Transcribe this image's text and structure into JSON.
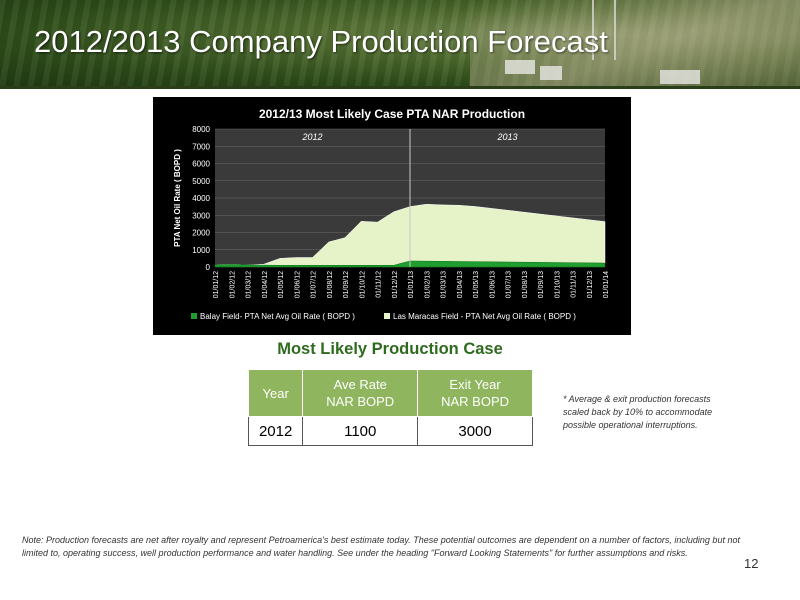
{
  "slide": {
    "title": "2012/2013 Company Production Forecast",
    "page_number": "12",
    "note": "Note: Production forecasts are net after royalty and represent Petroamerica's best estimate today. These potential outcomes are dependent on a number of factors, including but not limited to, operating success, well production performance and water handling. See under the heading \"Forward Looking Statements\" for further assumptions and risks.",
    "footnote": "* Average & exit production forecasts scaled back by 10% to accommodate possible operational interruptions."
  },
  "production_table": {
    "title": "Most Likely Production Case",
    "headers": [
      "Year",
      "Ave Rate\nNAR BOPD",
      "Exit Year\nNAR BOPD"
    ],
    "rows": [
      [
        "2012",
        "1100",
        "3000"
      ]
    ]
  },
  "chart_data": {
    "type": "area",
    "title": "2012/13 Most Likely Case PTA NAR Production",
    "ylabel": "PTA Net Oil Rate ( BOPD )",
    "xlabel": "",
    "ylim": [
      0,
      8000
    ],
    "yticks": [
      0,
      1000,
      2000,
      3000,
      4000,
      5000,
      6000,
      7000,
      8000
    ],
    "stacked": true,
    "grid": true,
    "legend_position": "bottom",
    "period_labels": [
      {
        "label": "2012",
        "at": "01/07/12"
      },
      {
        "label": "2013",
        "at": "01/07/13"
      }
    ],
    "divider_at": "01/01/13",
    "categories": [
      "01/01/12",
      "01/02/12",
      "01/03/12",
      "01/04/12",
      "01/05/12",
      "01/06/12",
      "01/07/12",
      "01/08/12",
      "01/09/12",
      "01/10/12",
      "01/11/12",
      "01/12/12",
      "01/01/13",
      "01/02/13",
      "01/03/13",
      "01/04/13",
      "01/05/13",
      "01/06/13",
      "01/07/13",
      "01/08/13",
      "01/09/13",
      "01/10/13",
      "01/11/13",
      "01/12/13",
      "01/01/14"
    ],
    "series": [
      {
        "name": "Balay Field- PTA Net Avg Oil Rate ( BOPD )",
        "color": "#1e9e2e",
        "values": [
          130,
          150,
          120,
          110,
          100,
          100,
          100,
          100,
          100,
          100,
          100,
          100,
          350,
          340,
          330,
          320,
          310,
          300,
          290,
          280,
          270,
          260,
          250,
          240,
          230
        ]
      },
      {
        "name": "Las Maracas Field - PTA Net Avg Oil Rate ( BOPD )",
        "color": "#e6f2c8",
        "values": [
          0,
          0,
          0,
          50,
          400,
          450,
          450,
          1350,
          1600,
          2550,
          2500,
          3100,
          3150,
          3300,
          3270,
          3260,
          3200,
          3100,
          3000,
          2900,
          2800,
          2700,
          2600,
          2500,
          2400
        ]
      }
    ]
  },
  "colors": {
    "header_green": "#3d5c23",
    "table_header": "#8fb55e",
    "table_title": "#2f6b1f",
    "chart_background": "#000000"
  }
}
